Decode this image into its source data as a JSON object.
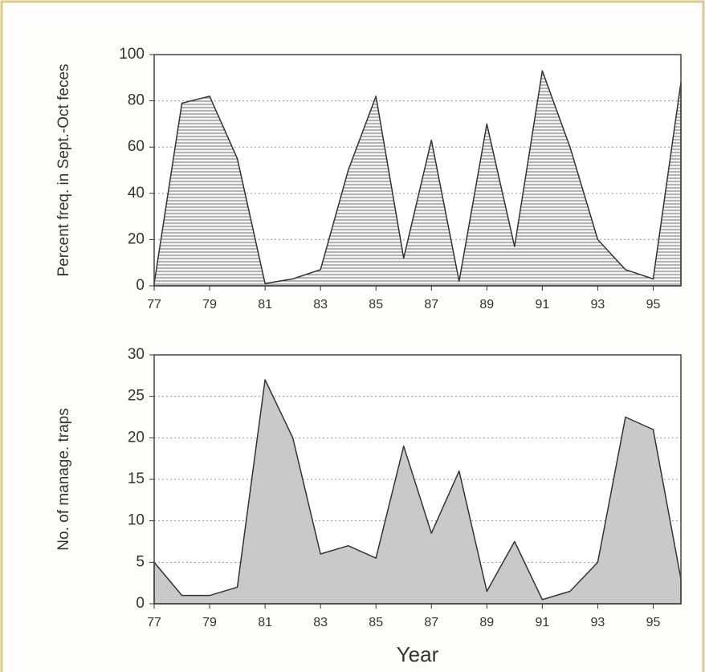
{
  "chart_data": [
    {
      "type": "area",
      "ylabel": "Percent freq. in Sept.-Oct feces",
      "x": [
        77,
        78,
        79,
        80,
        81,
        82,
        83,
        84,
        85,
        86,
        87,
        88,
        89,
        90,
        91,
        92,
        93,
        94,
        95,
        96
      ],
      "values": [
        1,
        79,
        82,
        55,
        1,
        3,
        7,
        50,
        82,
        12,
        63,
        2,
        70,
        17,
        93,
        60,
        20,
        7,
        3,
        88
      ],
      "color": "#e6e6e6",
      "hatch": true,
      "grid": true,
      "xlim": [
        77,
        96
      ],
      "xticks": [
        77,
        79,
        81,
        83,
        85,
        87,
        89,
        91,
        93,
        95
      ],
      "ylim": [
        0,
        100
      ],
      "yticks": [
        0,
        20,
        40,
        60,
        80,
        100
      ]
    },
    {
      "type": "area",
      "ylabel": "No. of manage. traps",
      "xlabel": "Year",
      "x": [
        77,
        78,
        79,
        80,
        81,
        82,
        83,
        84,
        85,
        86,
        87,
        88,
        89,
        90,
        91,
        92,
        93,
        94,
        95,
        96
      ],
      "values": [
        5,
        1,
        1,
        2,
        27,
        20,
        6,
        7,
        5.5,
        19,
        8.5,
        16,
        1.5,
        7.5,
        0.5,
        1.5,
        5,
        22.5,
        21,
        3
      ],
      "color": "#c9c9c9",
      "hatch": false,
      "grid": true,
      "xlim": [
        77,
        96
      ],
      "xticks": [
        77,
        79,
        81,
        83,
        85,
        87,
        89,
        91,
        93,
        95
      ],
      "ylim": [
        0,
        30
      ],
      "yticks": [
        0,
        5,
        10,
        15,
        20,
        25,
        30
      ]
    }
  ]
}
